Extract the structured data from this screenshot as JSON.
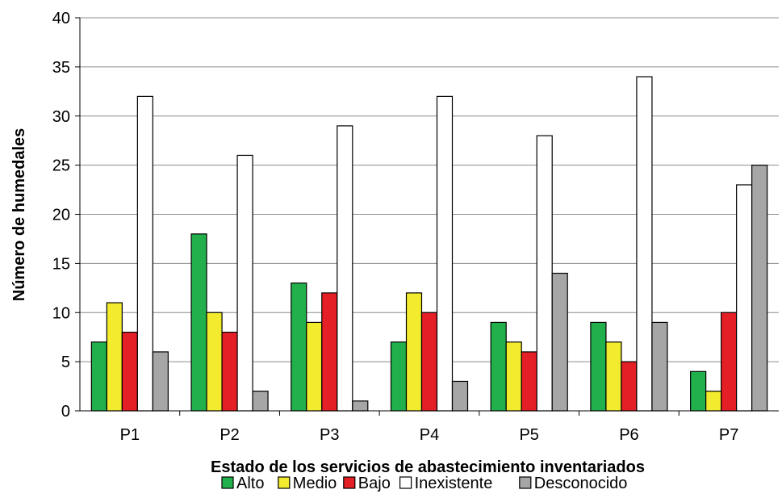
{
  "chart_data": {
    "type": "bar",
    "categories": [
      "P1",
      "P2",
      "P3",
      "P4",
      "P5",
      "P6",
      "P7"
    ],
    "series": [
      {
        "name": "Alto",
        "color": "#21b04b",
        "values": [
          7,
          18,
          13,
          7,
          9,
          9,
          4
        ]
      },
      {
        "name": "Medio",
        "color": "#f2eb2e",
        "values": [
          11,
          10,
          9,
          12,
          7,
          7,
          2
        ]
      },
      {
        "name": "Bajo",
        "color": "#e41f26",
        "values": [
          8,
          8,
          12,
          10,
          6,
          5,
          10
        ]
      },
      {
        "name": "Inexistente",
        "color": "#ffffff",
        "values": [
          32,
          26,
          29,
          32,
          28,
          34,
          23
        ]
      },
      {
        "name": "Desconocido",
        "color": "#a6a6a6",
        "values": [
          6,
          2,
          1,
          3,
          14,
          9,
          25
        ]
      }
    ],
    "xlabel": "Estado de los servicios de abastecimiento inventariados",
    "ylabel": "Número de humedales",
    "ylim": [
      0,
      40
    ],
    "yticks": [
      0,
      5,
      10,
      15,
      20,
      25,
      30,
      35,
      40
    ],
    "grid": true,
    "legend_position": "bottom"
  }
}
